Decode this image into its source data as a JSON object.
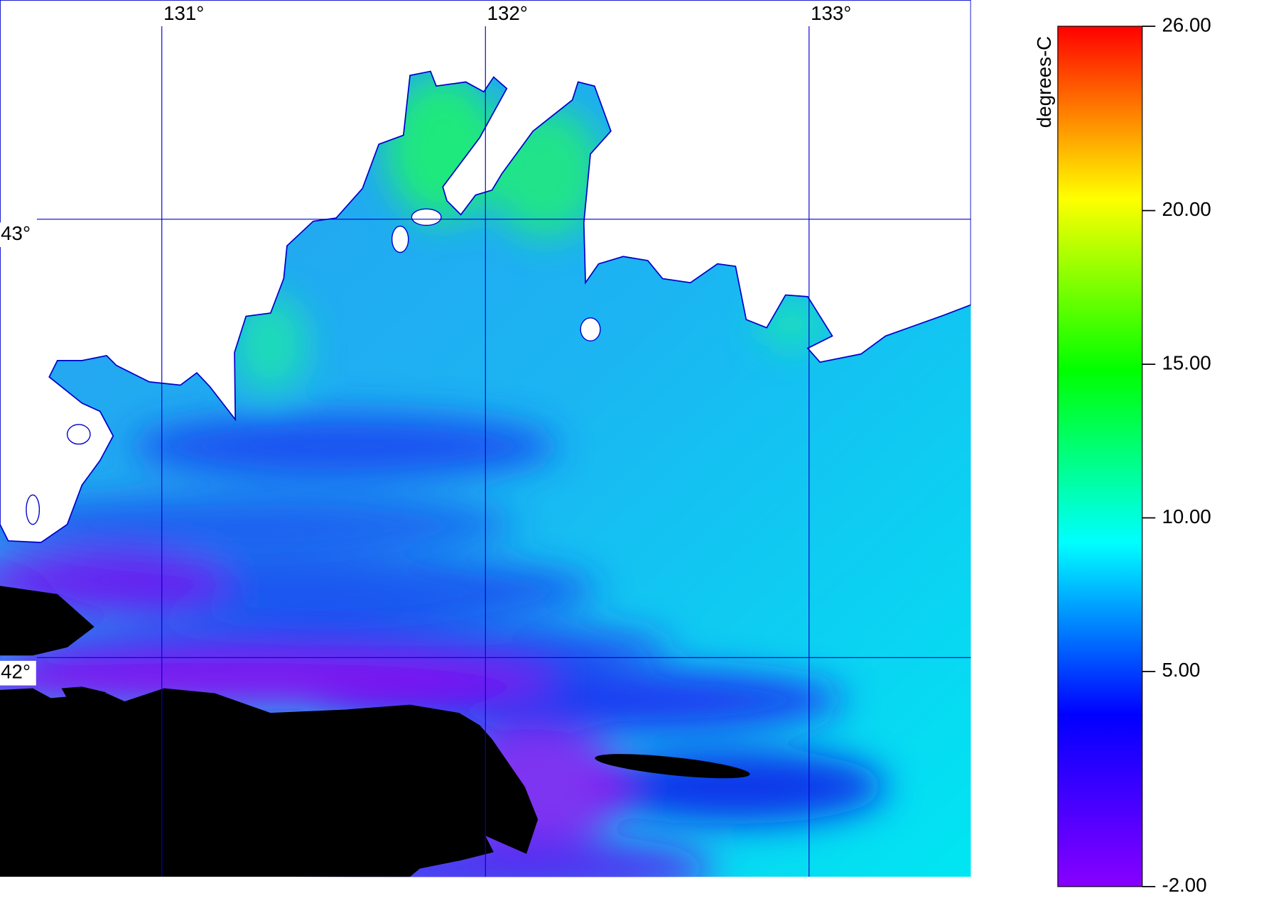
{
  "map": {
    "xlim": [
      130.5,
      133.5
    ],
    "ylim": [
      41.5,
      43.5
    ],
    "lon_ticks": [
      {
        "value": 131,
        "label": "131°"
      },
      {
        "value": 132,
        "label": "132°"
      },
      {
        "value": 133,
        "label": "133°"
      }
    ],
    "lat_ticks": [
      {
        "value": 43,
        "label": "43°"
      },
      {
        "value": 42,
        "label": "42°"
      }
    ],
    "grid_color": "#0000cc",
    "colorbar": {
      "label": "degrees-C",
      "range": [
        -2,
        26
      ],
      "ticks": [
        {
          "value": 26,
          "label": "26.00"
        },
        {
          "value": 20,
          "label": "20.00"
        },
        {
          "value": 15,
          "label": "15.00"
        },
        {
          "value": 10,
          "label": "10.00"
        },
        {
          "value": 5,
          "label": "5.00"
        },
        {
          "value": -2,
          "label": "-2.00"
        }
      ],
      "colors": [
        "#ff0000",
        "#ffff00",
        "#00ff00",
        "#00ffff",
        "#0000ff",
        "#8800ff"
      ]
    }
  }
}
